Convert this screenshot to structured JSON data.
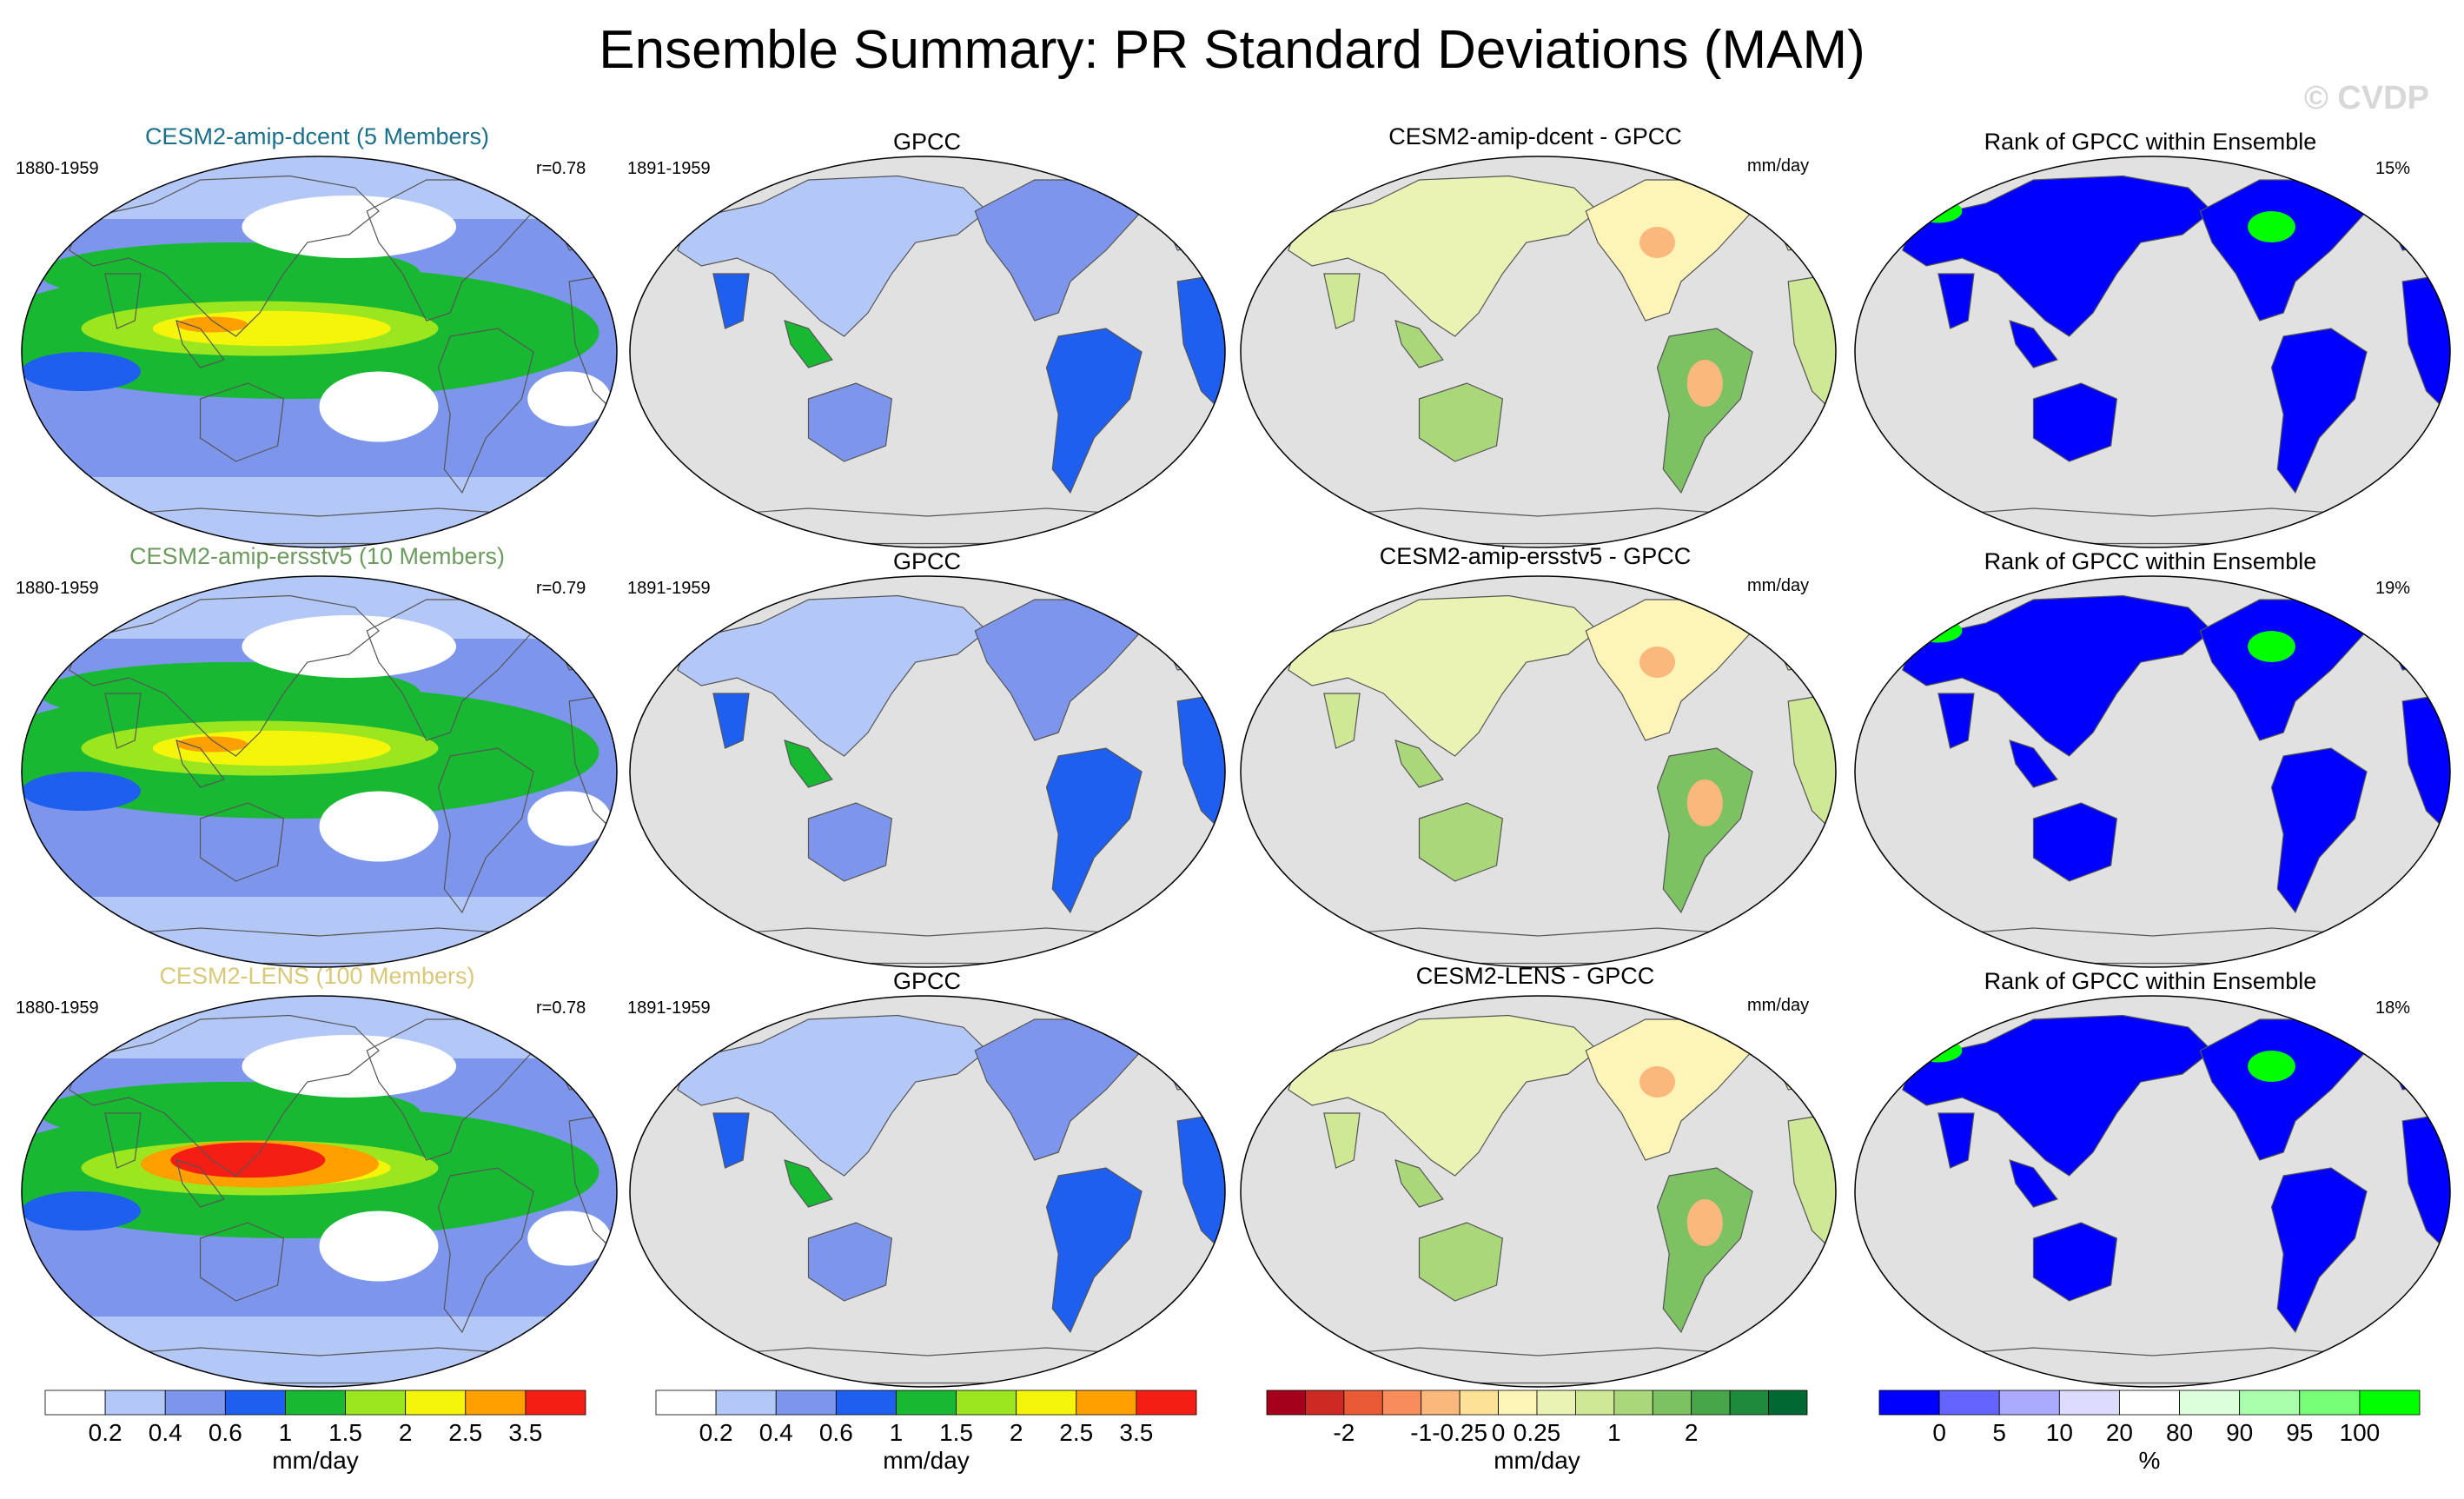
{
  "figure": {
    "title": "Ensemble Summary: PR Standard Deviations (MAM)",
    "watermark": "© CVDP"
  },
  "colors": {
    "std_levels": [
      "#ffffff",
      "#b4c8f8",
      "#7d96ec",
      "#1f5ff0",
      "#18b832",
      "#9be61e",
      "#f5f50a",
      "#ffa000",
      "#f51e14"
    ],
    "diff_levels": [
      "#a5001c",
      "#cc2a22",
      "#ea5a35",
      "#f88c5a",
      "#fbb87d",
      "#fde196",
      "#fdf5b8",
      "#ebf3b4",
      "#cfe896",
      "#a9d77a",
      "#7cc262",
      "#48a64a",
      "#1f8a3c",
      "#006832"
    ],
    "rank_levels": [
      "#0000ff",
      "#6464ff",
      "#aaaaff",
      "#dcdcff",
      "#ffffff",
      "#dcffdc",
      "#aaffaa",
      "#78ff78",
      "#00ff00"
    ],
    "ocean": "#e1e1e1",
    "land_outline": "#555555"
  },
  "panels": [
    {
      "title": "CESM2-amip-dcent (5 Members)",
      "title_color": "#1a6f8a",
      "period": "1880-1959",
      "corr": "r=0.78",
      "gpcc_title": "GPCC",
      "gpcc_period": "1891-1959",
      "diff_title": "CESM2-amip-dcent - GPCC",
      "diff_units": "mm/day",
      "rank_title": "Rank of GPCC within Ensemble",
      "rank_pct": "15%"
    },
    {
      "title": "CESM2-amip-ersstv5 (10 Members)",
      "title_color": "#6b9b5e",
      "period": "1880-1959",
      "corr": "r=0.79",
      "gpcc_title": "GPCC",
      "gpcc_period": "1891-1959",
      "diff_title": "CESM2-amip-ersstv5 - GPCC",
      "diff_units": "mm/day",
      "rank_title": "Rank of GPCC within Ensemble",
      "rank_pct": "19%"
    },
    {
      "title": "CESM2-LENS (100 Members)",
      "title_color": "#d8c878",
      "period": "1880-1959",
      "corr": "r=0.78",
      "gpcc_title": "GPCC",
      "gpcc_period": "1891-1959",
      "diff_title": "CESM2-LENS - GPCC",
      "diff_units": "mm/day",
      "rank_title": "Rank of GPCC within Ensemble",
      "rank_pct": "18%"
    }
  ],
  "colorbars": [
    {
      "ticks": [
        "0.2",
        "0.4",
        "0.6",
        "1",
        "1.5",
        "2",
        "2.5",
        "3.5"
      ],
      "units": "mm/day"
    },
    {
      "ticks": [
        "0.2",
        "0.4",
        "0.6",
        "1",
        "1.5",
        "2",
        "2.5",
        "3.5"
      ],
      "units": "mm/day"
    },
    {
      "ticks": [
        "-2",
        "-1",
        "-0.25",
        "0",
        "0.25",
        "1",
        "2"
      ],
      "units": "mm/day"
    },
    {
      "ticks": [
        "0",
        "5",
        "10",
        "20",
        "80",
        "90",
        "95",
        "100"
      ],
      "units": "%"
    }
  ],
  "chart_data": [
    {
      "type": "heatmap",
      "title": "CESM2-amip-dcent (5 Members)",
      "field": "PR standard deviation",
      "season": "MAM",
      "units": "mm/day",
      "period": "1880-1959",
      "pattern_correlation": 0.78,
      "levels": [
        0.2,
        0.4,
        0.6,
        1,
        1.5,
        2,
        2.5,
        3.5
      ],
      "max_region": "tropical west Pacific / ITCZ"
    },
    {
      "type": "heatmap",
      "title": "GPCC",
      "field": "PR standard deviation",
      "units": "mm/day",
      "period": "1891-1959",
      "levels": [
        0.2,
        0.4,
        0.6,
        1,
        1.5,
        2,
        2.5,
        3.5
      ],
      "coverage": "land only"
    },
    {
      "type": "heatmap",
      "title": "CESM2-amip-dcent - GPCC",
      "field": "difference",
      "units": "mm/day",
      "levels": [
        -2,
        -1,
        -0.25,
        0,
        0.25,
        1,
        2
      ],
      "coverage": "land only"
    },
    {
      "type": "heatmap",
      "title": "Rank of GPCC within Ensemble",
      "field": "rank",
      "units": "%",
      "levels": [
        0,
        5,
        10,
        20,
        80,
        90,
        95,
        100
      ],
      "percent_value": 15
    },
    {
      "type": "heatmap",
      "title": "CESM2-amip-ersstv5 (10 Members)",
      "field": "PR standard deviation",
      "season": "MAM",
      "units": "mm/day",
      "period": "1880-1959",
      "pattern_correlation": 0.79,
      "levels": [
        0.2,
        0.4,
        0.6,
        1,
        1.5,
        2,
        2.5,
        3.5
      ],
      "max_region": "tropical west Pacific"
    },
    {
      "type": "heatmap",
      "title": "GPCC",
      "field": "PR standard deviation",
      "units": "mm/day",
      "period": "1891-1959",
      "levels": [
        0.2,
        0.4,
        0.6,
        1,
        1.5,
        2,
        2.5,
        3.5
      ],
      "coverage": "land only"
    },
    {
      "type": "heatmap",
      "title": "CESM2-amip-ersstv5 - GPCC",
      "field": "difference",
      "units": "mm/day",
      "levels": [
        -2,
        -1,
        -0.25,
        0,
        0.25,
        1,
        2
      ],
      "coverage": "land only"
    },
    {
      "type": "heatmap",
      "title": "Rank of GPCC within Ensemble",
      "field": "rank",
      "units": "%",
      "levels": [
        0,
        5,
        10,
        20,
        80,
        90,
        95,
        100
      ],
      "percent_value": 19
    },
    {
      "type": "heatmap",
      "title": "CESM2-LENS (100 Members)",
      "field": "PR standard deviation",
      "season": "MAM",
      "units": "mm/day",
      "period": "1880-1959",
      "pattern_correlation": 0.78,
      "levels": [
        0.2,
        0.4,
        0.6,
        1,
        1.5,
        2,
        2.5,
        3.5
      ],
      "max_region": "central Pacific, exceeds 3.5"
    },
    {
      "type": "heatmap",
      "title": "GPCC",
      "field": "PR standard deviation",
      "units": "mm/day",
      "period": "1891-1959",
      "levels": [
        0.2,
        0.4,
        0.6,
        1,
        1.5,
        2,
        2.5,
        3.5
      ],
      "coverage": "land only"
    },
    {
      "type": "heatmap",
      "title": "CESM2-LENS - GPCC",
      "field": "difference",
      "units": "mm/day",
      "levels": [
        -2,
        -1,
        -0.25,
        0,
        0.25,
        1,
        2
      ],
      "coverage": "land only"
    },
    {
      "type": "heatmap",
      "title": "Rank of GPCC within Ensemble",
      "field": "rank",
      "units": "%",
      "levels": [
        0,
        5,
        10,
        20,
        80,
        90,
        95,
        100
      ],
      "percent_value": 18
    }
  ]
}
